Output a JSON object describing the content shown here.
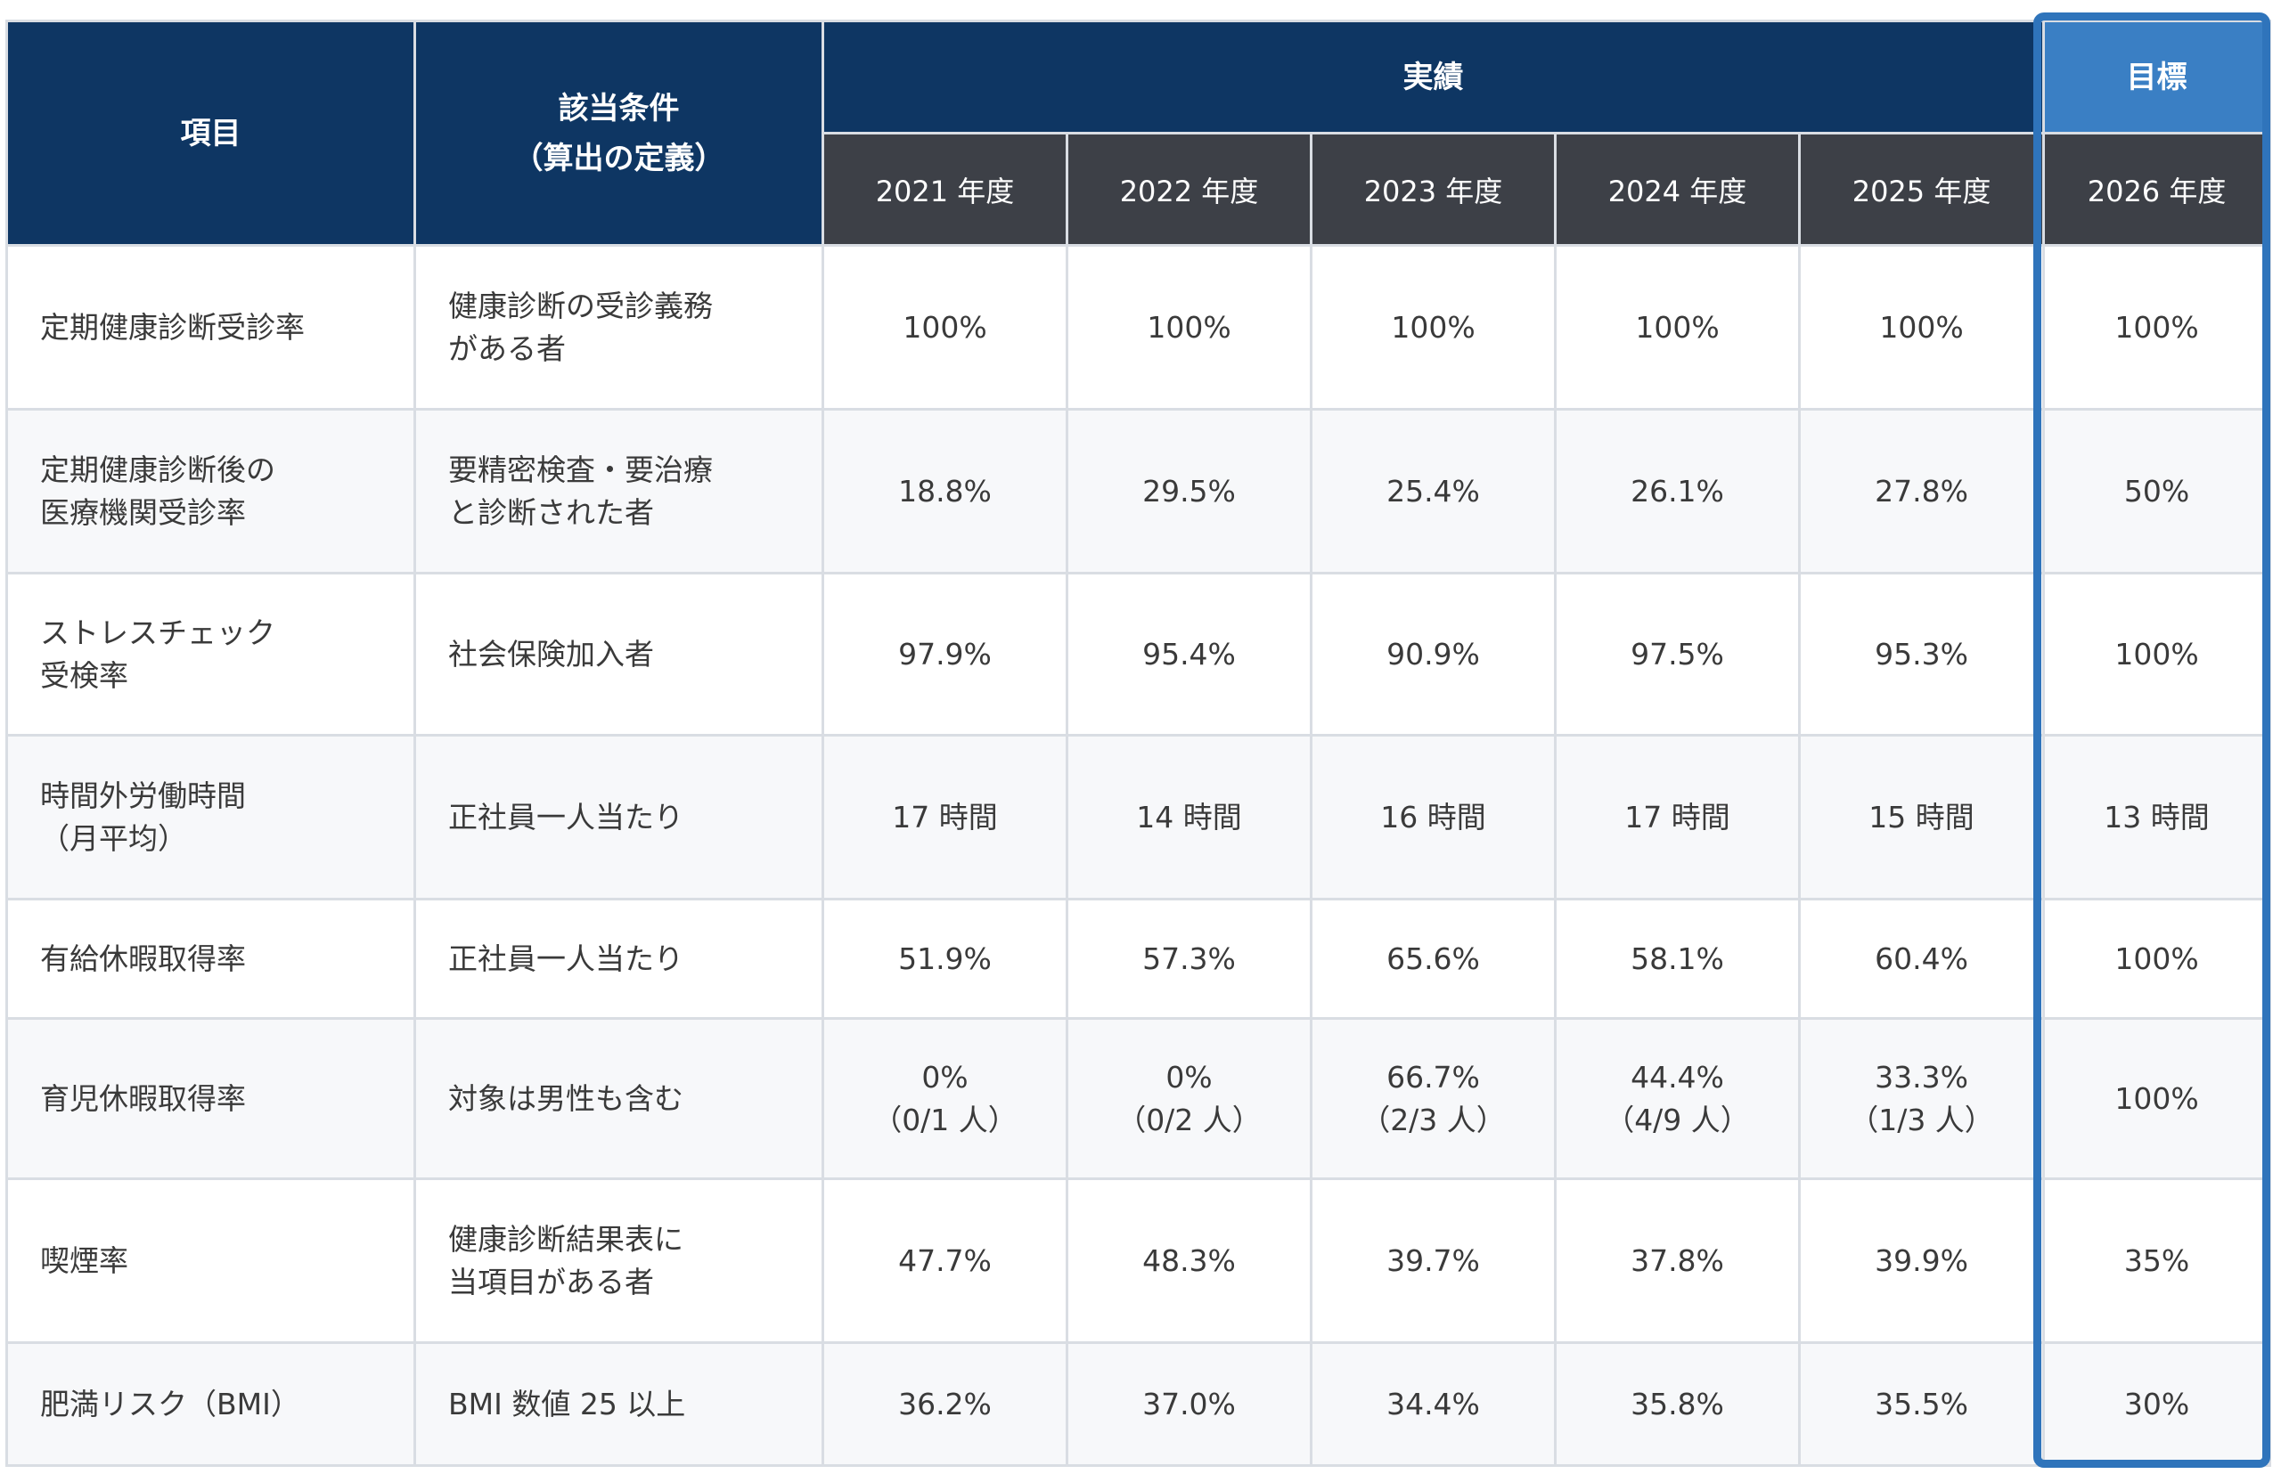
{
  "header": {
    "item": "項目",
    "condition": [
      "該当条件",
      "（算出の定義）"
    ],
    "actual": "実績",
    "target": "目標",
    "years": [
      "2021 年度",
      "2022 年度",
      "2023 年度",
      "2024 年度",
      "2025 年度"
    ],
    "target_year": "2026 年度"
  },
  "rows": [
    {
      "item": [
        "定期健康診断受診率"
      ],
      "condition": [
        "健康診断の受診義務",
        "がある者"
      ],
      "values": [
        [
          "100%"
        ],
        [
          "100%"
        ],
        [
          "100%"
        ],
        [
          "100%"
        ],
        [
          "100%"
        ]
      ],
      "target": "100%"
    },
    {
      "item": [
        "定期健康診断後の",
        "医療機関受診率"
      ],
      "condition": [
        "要精密検査・要治療",
        "と診断された者"
      ],
      "values": [
        [
          "18.8%"
        ],
        [
          "29.5%"
        ],
        [
          "25.4%"
        ],
        [
          "26.1%"
        ],
        [
          "27.8%"
        ]
      ],
      "target": "50%"
    },
    {
      "item": [
        "ストレスチェック",
        "受検率"
      ],
      "condition": [
        "社会保険加入者"
      ],
      "values": [
        [
          "97.9%"
        ],
        [
          "95.4%"
        ],
        [
          "90.9%"
        ],
        [
          "97.5%"
        ],
        [
          "95.3%"
        ]
      ],
      "target": "100%"
    },
    {
      "item": [
        "時間外労働時間",
        "（月平均）"
      ],
      "condition": [
        "正社員一人当たり"
      ],
      "values": [
        [
          "17 時間"
        ],
        [
          "14 時間"
        ],
        [
          "16 時間"
        ],
        [
          "17 時間"
        ],
        [
          "15 時間"
        ]
      ],
      "target": "13 時間"
    },
    {
      "item": [
        "有給休暇取得率"
      ],
      "condition": [
        "正社員一人当たり"
      ],
      "values": [
        [
          "51.9%"
        ],
        [
          "57.3%"
        ],
        [
          "65.6%"
        ],
        [
          "58.1%"
        ],
        [
          "60.4%"
        ]
      ],
      "target": "100%"
    },
    {
      "item": [
        "育児休暇取得率"
      ],
      "condition": [
        "対象は男性も含む"
      ],
      "values": [
        [
          "0%",
          "（0/1 人）"
        ],
        [
          "0%",
          "（0/2 人）"
        ],
        [
          "66.7%",
          "（2/3 人）"
        ],
        [
          "44.4%",
          "（4/9 人）"
        ],
        [
          "33.3%",
          "（1/3 人）"
        ]
      ],
      "target": "100%"
    },
    {
      "item": [
        "喫煙率"
      ],
      "condition": [
        "健康診断結果表に",
        "当項目がある者"
      ],
      "values": [
        [
          "47.7%"
        ],
        [
          "48.3%"
        ],
        [
          "39.7%"
        ],
        [
          "37.8%"
        ],
        [
          "39.9%"
        ]
      ],
      "target": "35%"
    },
    {
      "item": [
        "肥満リスク（BMI）"
      ],
      "condition": [
        "BMI 数値 25 以上"
      ],
      "values": [
        [
          "36.2%"
        ],
        [
          "37.0%"
        ],
        [
          "34.4%"
        ],
        [
          "35.8%"
        ],
        [
          "35.5%"
        ]
      ],
      "target": "30%"
    }
  ],
  "colors": {
    "header_navy": "#0e3663",
    "header_year": "#3d4047",
    "target_accent": "#2f74bb",
    "text": "#3a3a3a"
  }
}
